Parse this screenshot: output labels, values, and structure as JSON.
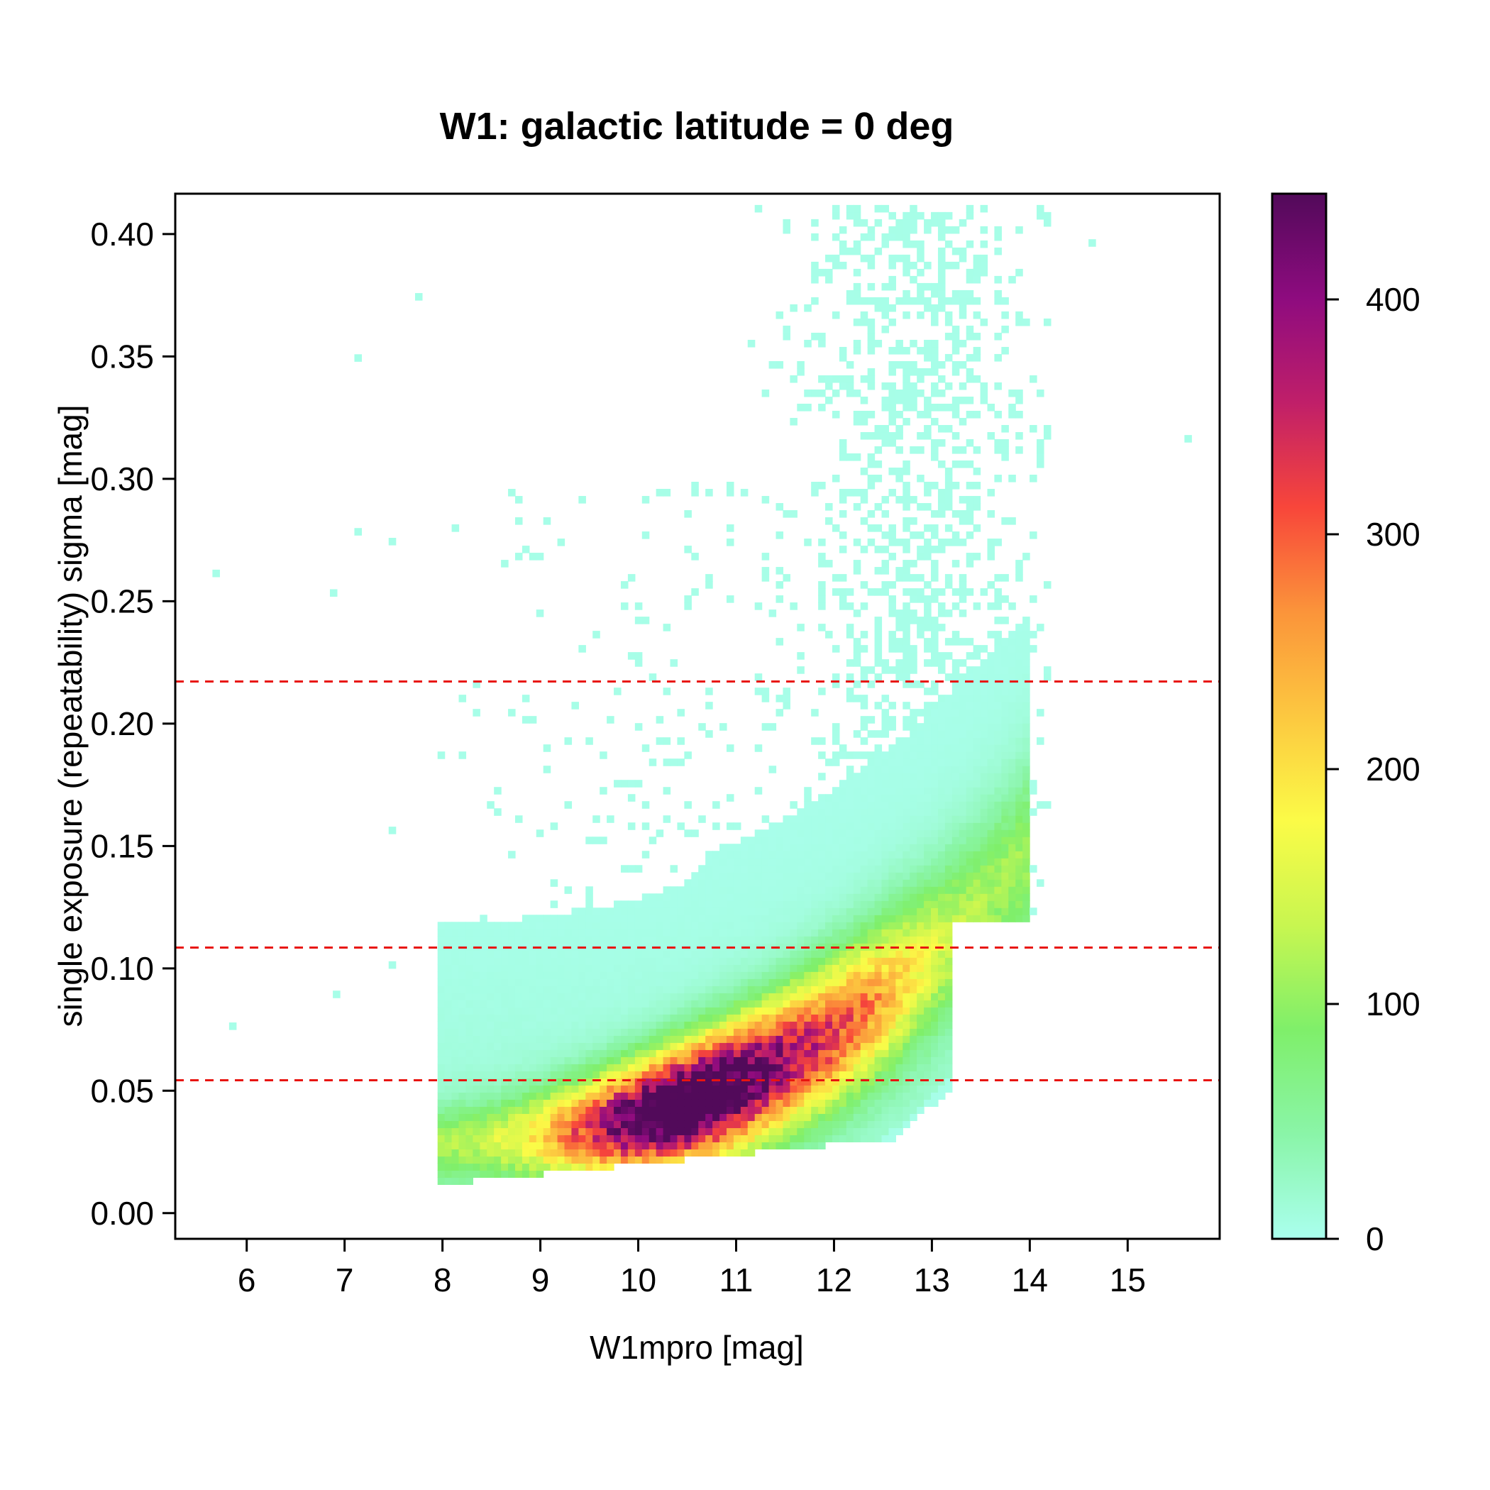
{
  "chart_data": {
    "type": "heatmap",
    "title": "W1: galactic latitude = 0 deg",
    "xlabel": "W1mpro [mag]",
    "ylabel": "single exposure (repeatability) sigma [mag]",
    "xlim": [
      5.27,
      15.94
    ],
    "ylim": [
      -0.0105,
      0.4165
    ],
    "x_ticks": [
      6,
      7,
      8,
      9,
      10,
      11,
      12,
      13,
      14,
      15
    ],
    "x_tick_labels": [
      "6",
      "7",
      "8",
      "9",
      "10",
      "11",
      "12",
      "13",
      "14",
      "15"
    ],
    "y_ticks": [
      0.0,
      0.05,
      0.1,
      0.15,
      0.2,
      0.25,
      0.3,
      0.35,
      0.4
    ],
    "y_tick_labels": [
      "0.00",
      "0.05",
      "0.10",
      "0.15",
      "0.20",
      "0.25",
      "0.30",
      "0.35",
      "0.40"
    ],
    "colorbar": {
      "range": [
        0,
        445
      ],
      "ticks": [
        0,
        100,
        200,
        300,
        400
      ],
      "tick_labels": [
        "0",
        "100",
        "200",
        "300",
        "400"
      ],
      "colors": [
        "#aaffee",
        "#8af5a8",
        "#7fef6a",
        "#c8f650",
        "#fbfb47",
        "#fcc840",
        "#fb943a",
        "#f8463a",
        "#c01f69",
        "#8e0b7f",
        "#520a5a"
      ]
    },
    "reference_lines": {
      "style": "dashed",
      "color": "#e8140f",
      "y_values": [
        0.0543,
        0.1085,
        0.2172
      ]
    },
    "density_description": "2D histogram of W1mpro vs single-exposure sigma; dense ridge rising from ~0.03 mag at W1=8-9 to ~0.10 mag at W1=12.5; peak counts ~440 near W1=10-11, sigma 0.04-0.06; sparse scatter up to 0.40 mag at W1=12-14."
  }
}
